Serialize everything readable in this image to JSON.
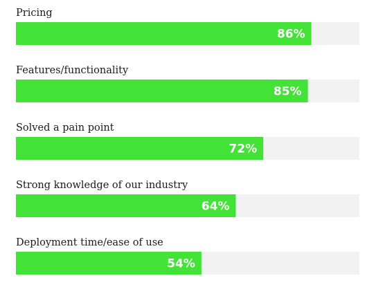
{
  "chart_data": {
    "type": "bar",
    "orientation": "horizontal",
    "title": "",
    "xlabel": "",
    "ylabel": "",
    "xlim": [
      0,
      100
    ],
    "grid": false,
    "legend": "none",
    "categories": [
      "Pricing",
      "Features/functionality",
      "Solved a pain point",
      "Strong knowledge of our industry",
      "Deployment time/ease of use"
    ],
    "values": [
      86,
      85,
      72,
      64,
      54
    ],
    "value_labels": [
      "86%",
      "85%",
      "72%",
      "64%",
      "54%"
    ],
    "colors": {
      "bar": "#42e336",
      "track": "#f2f2f2",
      "value_text": "#ffffff",
      "label_text": "#1a1a1a"
    }
  }
}
